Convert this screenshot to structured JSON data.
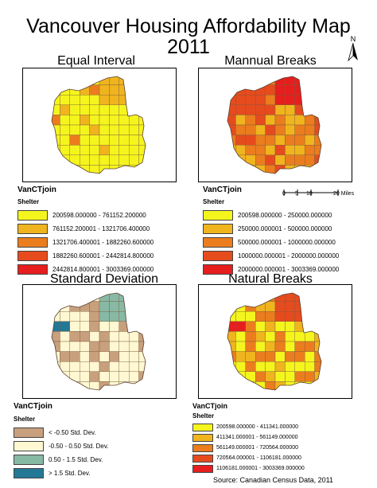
{
  "title_line1": "Vancouver Housing Affordability Map",
  "title_line2": "2011",
  "panels": [
    {
      "title": "Equal Interval",
      "layer": "VanCTjoin",
      "field": "Shelter",
      "classes": [
        {
          "label": "200598.000000 - 761152.200000",
          "color": "#f5f51e"
        },
        {
          "label": "761152.200001 - 1321706.400000",
          "color": "#f0b41e"
        },
        {
          "label": "1321706.400001 - 1882260.600000",
          "color": "#eb7d1e"
        },
        {
          "label": "1882260.600001 - 2442814.800000",
          "color": "#e64b1e"
        },
        {
          "label": "2442814.800001 - 3003369.000000",
          "color": "#e61e1e"
        }
      ]
    },
    {
      "title": "Mannual Breaks",
      "layer": "VanCTjoin",
      "field": "Shelter",
      "classes": [
        {
          "label": "200598.000000 - 250000.000000",
          "color": "#f5f51e"
        },
        {
          "label": "250000.000001 - 500000.000000",
          "color": "#f0b41e"
        },
        {
          "label": "500000.000001 - 1000000.000000",
          "color": "#eb7d1e"
        },
        {
          "label": "1000000.000001 - 2000000.000000",
          "color": "#e64b1e"
        },
        {
          "label": "2000000.000001 - 3003369.000000",
          "color": "#e61e1e"
        }
      ]
    },
    {
      "title": "Standard Deviation",
      "layer": "VanCTjoin",
      "field": "Shelter",
      "classes": [
        {
          "label": "< -0.50 Std. Dev.",
          "color": "#c8a07d"
        },
        {
          "label": "-0.50 - 0.50 Std. Dev.",
          "color": "#fff8d2"
        },
        {
          "label": "0.50 - 1.5 Std. Dev.",
          "color": "#87b9a5"
        },
        {
          "label": "> 1.5 Std. Dev.",
          "color": "#237896"
        }
      ]
    },
    {
      "title": "Natural Breaks",
      "layer": "VanCTjoin",
      "field": "Shelter",
      "classes": [
        {
          "label": "200598.000000 - 411341.000000",
          "color": "#f5f51e"
        },
        {
          "label": "411341.000001 - 561149.000000",
          "color": "#f0b41e"
        },
        {
          "label": "561149.000001 - 720564.000000",
          "color": "#eb7d1e"
        },
        {
          "label": "720564.000001 - 1106181.000000",
          "color": "#e64b1e"
        },
        {
          "label": "1106181.000001 - 3003369.000000",
          "color": "#e61e1e"
        }
      ]
    }
  ],
  "north_arrow": "N",
  "scale_bar": {
    "ticks": [
      "0",
      "5",
      "10",
      "20 Miles"
    ]
  },
  "source": "Source: Canadian Census Data, 2011"
}
